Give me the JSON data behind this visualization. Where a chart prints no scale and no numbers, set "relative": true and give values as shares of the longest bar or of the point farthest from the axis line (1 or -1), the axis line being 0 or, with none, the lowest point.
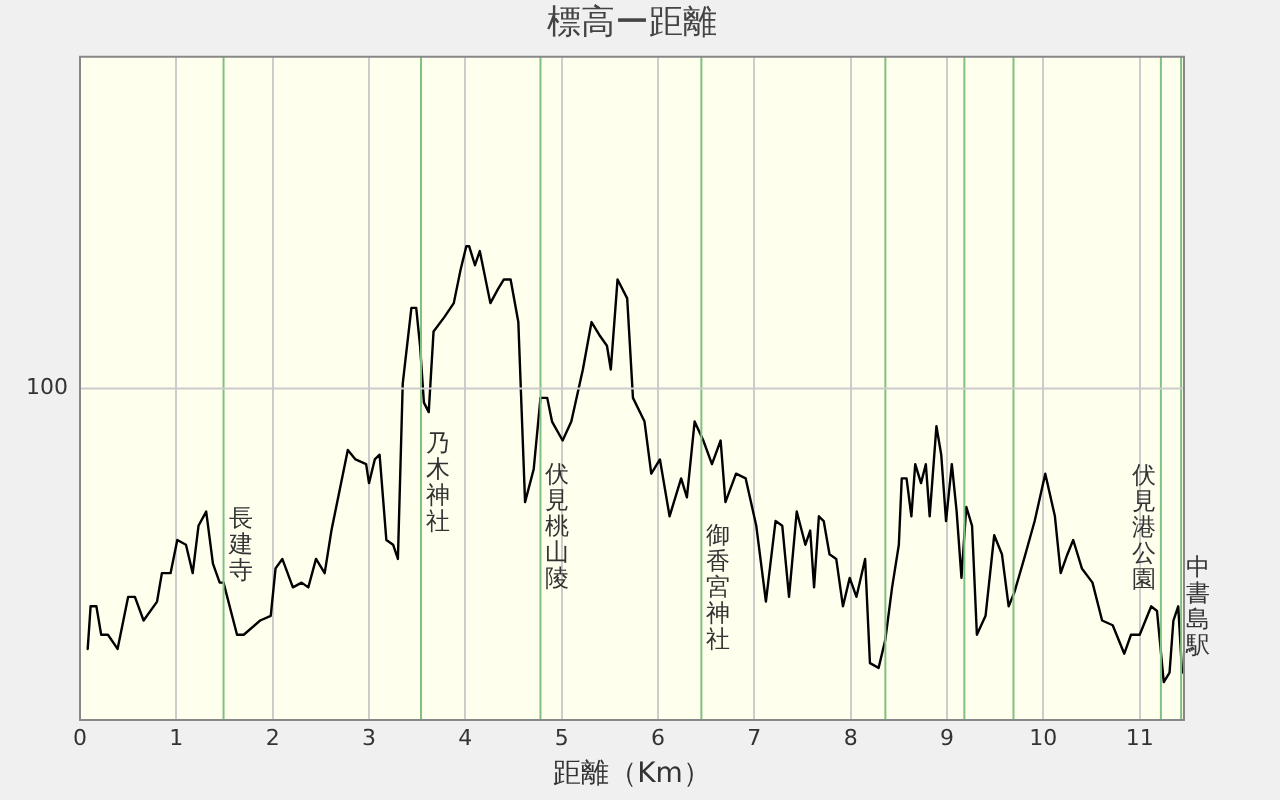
{
  "chart_data": {
    "type": "line",
    "title": "標高ー距離",
    "xlabel": "距離（Km）",
    "x": [
      0.08,
      0.11,
      0.17,
      0.22,
      0.29,
      0.39,
      0.5,
      0.57,
      0.66,
      0.8,
      0.85,
      0.94,
      1.01,
      1.1,
      1.17,
      1.23,
      1.31,
      1.38,
      1.45,
      1.49,
      1.63,
      1.7,
      1.87,
      1.98,
      2.03,
      2.1,
      2.21,
      2.3,
      2.37,
      2.45,
      2.54,
      2.61,
      2.78,
      2.86,
      2.97,
      3.0,
      3.06,
      3.11,
      3.18,
      3.25,
      3.3,
      3.35,
      3.44,
      3.49,
      3.53,
      3.57,
      3.62,
      3.67,
      3.78,
      3.88,
      3.95,
      4.01,
      4.04,
      4.1,
      4.15,
      4.26,
      4.34,
      4.4,
      4.47,
      4.55,
      4.62,
      4.71,
      4.78,
      4.85,
      4.9,
      5.01,
      5.1,
      5.22,
      5.31,
      5.4,
      5.47,
      5.51,
      5.58,
      5.68,
      5.74,
      5.86,
      5.93,
      6.02,
      6.12,
      6.24,
      6.3,
      6.38,
      6.47,
      6.56,
      6.65,
      6.7,
      6.81,
      6.91,
      7.02,
      7.12,
      7.22,
      7.29,
      7.36,
      7.44,
      7.53,
      7.58,
      7.62,
      7.67,
      7.72,
      7.78,
      7.85,
      7.92,
      7.99,
      8.06,
      8.15,
      8.2,
      8.29,
      8.36,
      8.43,
      8.5,
      8.53,
      8.58,
      8.63,
      8.67,
      8.73,
      8.78,
      8.82,
      8.89,
      8.94,
      8.99,
      9.05,
      9.1,
      9.15,
      9.2,
      9.26,
      9.31,
      9.4,
      9.49,
      9.57,
      9.64,
      9.7,
      9.8,
      9.91,
      10.02,
      10.12,
      10.18,
      10.25,
      10.31,
      10.4,
      10.51,
      10.61,
      10.72,
      10.84,
      10.91,
      11.0,
      11.12,
      11.18,
      11.25,
      11.31,
      11.35,
      11.4,
      11.44
    ],
    "values": [
      0.15,
      0.24,
      0.24,
      0.18,
      0.18,
      0.15,
      0.26,
      0.26,
      0.21,
      0.25,
      0.31,
      0.31,
      0.38,
      0.37,
      0.31,
      0.41,
      0.44,
      0.33,
      0.29,
      0.29,
      0.18,
      0.18,
      0.21,
      0.22,
      0.32,
      0.34,
      0.28,
      0.29,
      0.28,
      0.34,
      0.31,
      0.4,
      0.57,
      0.55,
      0.54,
      0.5,
      0.55,
      0.56,
      0.38,
      0.37,
      0.34,
      0.71,
      0.87,
      0.87,
      0.79,
      0.67,
      0.65,
      0.82,
      0.85,
      0.88,
      0.95,
      1,
      1,
      0.96,
      0.99,
      0.88,
      0.91,
      0.93,
      0.93,
      0.84,
      0.46,
      0.53,
      0.68,
      0.68,
      0.63,
      0.59,
      0.63,
      0.74,
      0.84,
      0.81,
      0.79,
      0.74,
      0.93,
      0.89,
      0.68,
      0.63,
      0.52,
      0.55,
      0.43,
      0.51,
      0.47,
      0.63,
      0.59,
      0.54,
      0.59,
      0.46,
      0.52,
      0.51,
      0.41,
      0.25,
      0.42,
      0.41,
      0.26,
      0.44,
      0.37,
      0.4,
      0.28,
      0.43,
      0.42,
      0.35,
      0.34,
      0.24,
      0.3,
      0.26,
      0.34,
      0.12,
      0.11,
      0.17,
      0.28,
      0.37,
      0.51,
      0.51,
      0.43,
      0.54,
      0.5,
      0.54,
      0.43,
      0.62,
      0.56,
      0.42,
      0.54,
      0.44,
      0.3,
      0.45,
      0.41,
      0.18,
      0.22,
      0.39,
      0.35,
      0.24,
      0.27,
      0.34,
      0.42,
      0.52,
      0.43,
      0.31,
      0.35,
      0.38,
      0.32,
      0.29,
      0.21,
      0.2,
      0.14,
      0.18,
      0.18,
      0.24,
      0.23,
      0.08,
      0.1,
      0.21,
      0.24,
      0.1
    ],
    "relative": true,
    "annotations": [
      "100"
    ],
    "color": "#000000",
    "marker": "none",
    "xlim": [
      0,
      11.46
    ],
    "xticks": [
      0,
      1,
      2,
      3,
      4,
      5,
      6,
      7,
      8,
      9,
      10,
      11
    ],
    "grid": true,
    "ref_lines": [
      {
        "axis": "x",
        "value": 1.49,
        "label": "長建寺",
        "color": "#80c080"
      },
      {
        "axis": "x",
        "value": 3.54,
        "label": "乃木神社",
        "color": "#80c080"
      },
      {
        "axis": "x",
        "value": 4.78,
        "label": "伏見桃山陵",
        "color": "#80c080"
      },
      {
        "axis": "x",
        "value": 6.45,
        "label": "御香宮神社",
        "color": "#80c080"
      },
      {
        "axis": "x",
        "value": 8.36,
        "label": null,
        "color": "#80c080"
      },
      {
        "axis": "x",
        "value": 9.18,
        "label": null,
        "color": "#80c080"
      },
      {
        "axis": "x",
        "value": 9.69,
        "label": null,
        "color": "#80c080"
      },
      {
        "axis": "x",
        "value": 11.22,
        "label": "伏見港公園",
        "color": "#80c080"
      },
      {
        "axis": "x",
        "value": 11.43,
        "label": "中書島駅",
        "color": "#80c080"
      }
    ]
  }
}
